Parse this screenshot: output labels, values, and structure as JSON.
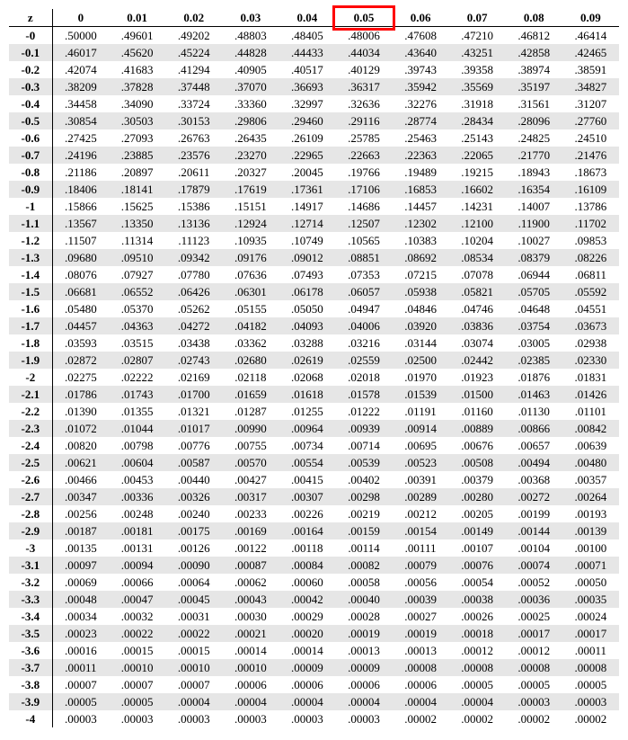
{
  "table": {
    "type": "table",
    "header_label": "z",
    "columns": [
      "0",
      "0.01",
      "0.02",
      "0.03",
      "0.04",
      "0.05",
      "0.06",
      "0.07",
      "0.08",
      "0.09"
    ],
    "highlighted_column_index": 5,
    "highlight_color": "#ff0000",
    "row_shade_color": "#e6e6e6",
    "border_color": "#000000",
    "font_family": "Times New Roman",
    "header_fontsize": 13,
    "cell_fontsize": 13,
    "rows": [
      {
        "z": "-0",
        "v": [
          ".50000",
          ".49601",
          ".49202",
          ".48803",
          ".48405",
          ".48006",
          ".47608",
          ".47210",
          ".46812",
          ".46414"
        ]
      },
      {
        "z": "-0.1",
        "v": [
          ".46017",
          ".45620",
          ".45224",
          ".44828",
          ".44433",
          ".44034",
          ".43640",
          ".43251",
          ".42858",
          ".42465"
        ]
      },
      {
        "z": "-0.2",
        "v": [
          ".42074",
          ".41683",
          ".41294",
          ".40905",
          ".40517",
          ".40129",
          ".39743",
          ".39358",
          ".38974",
          ".38591"
        ]
      },
      {
        "z": "-0.3",
        "v": [
          ".38209",
          ".37828",
          ".37448",
          ".37070",
          ".36693",
          ".36317",
          ".35942",
          ".35569",
          ".35197",
          ".34827"
        ]
      },
      {
        "z": "-0.4",
        "v": [
          ".34458",
          ".34090",
          ".33724",
          ".33360",
          ".32997",
          ".32636",
          ".32276",
          ".31918",
          ".31561",
          ".31207"
        ]
      },
      {
        "z": "-0.5",
        "v": [
          ".30854",
          ".30503",
          ".30153",
          ".29806",
          ".29460",
          ".29116",
          ".28774",
          ".28434",
          ".28096",
          ".27760"
        ]
      },
      {
        "z": "-0.6",
        "v": [
          ".27425",
          ".27093",
          ".26763",
          ".26435",
          ".26109",
          ".25785",
          ".25463",
          ".25143",
          ".24825",
          ".24510"
        ]
      },
      {
        "z": "-0.7",
        "v": [
          ".24196",
          ".23885",
          ".23576",
          ".23270",
          ".22965",
          ".22663",
          ".22363",
          ".22065",
          ".21770",
          ".21476"
        ]
      },
      {
        "z": "-0.8",
        "v": [
          ".21186",
          ".20897",
          ".20611",
          ".20327",
          ".20045",
          ".19766",
          ".19489",
          ".19215",
          ".18943",
          ".18673"
        ]
      },
      {
        "z": "-0.9",
        "v": [
          ".18406",
          ".18141",
          ".17879",
          ".17619",
          ".17361",
          ".17106",
          ".16853",
          ".16602",
          ".16354",
          ".16109"
        ]
      },
      {
        "z": "-1",
        "v": [
          ".15866",
          ".15625",
          ".15386",
          ".15151",
          ".14917",
          ".14686",
          ".14457",
          ".14231",
          ".14007",
          ".13786"
        ]
      },
      {
        "z": "-1.1",
        "v": [
          ".13567",
          ".13350",
          ".13136",
          ".12924",
          ".12714",
          ".12507",
          ".12302",
          ".12100",
          ".11900",
          ".11702"
        ]
      },
      {
        "z": "-1.2",
        "v": [
          ".11507",
          ".11314",
          ".11123",
          ".10935",
          ".10749",
          ".10565",
          ".10383",
          ".10204",
          ".10027",
          ".09853"
        ]
      },
      {
        "z": "-1.3",
        "v": [
          ".09680",
          ".09510",
          ".09342",
          ".09176",
          ".09012",
          ".08851",
          ".08692",
          ".08534",
          ".08379",
          ".08226"
        ]
      },
      {
        "z": "-1.4",
        "v": [
          ".08076",
          ".07927",
          ".07780",
          ".07636",
          ".07493",
          ".07353",
          ".07215",
          ".07078",
          ".06944",
          ".06811"
        ]
      },
      {
        "z": "-1.5",
        "v": [
          ".06681",
          ".06552",
          ".06426",
          ".06301",
          ".06178",
          ".06057",
          ".05938",
          ".05821",
          ".05705",
          ".05592"
        ]
      },
      {
        "z": "-1.6",
        "v": [
          ".05480",
          ".05370",
          ".05262",
          ".05155",
          ".05050",
          ".04947",
          ".04846",
          ".04746",
          ".04648",
          ".04551"
        ]
      },
      {
        "z": "-1.7",
        "v": [
          ".04457",
          ".04363",
          ".04272",
          ".04182",
          ".04093",
          ".04006",
          ".03920",
          ".03836",
          ".03754",
          ".03673"
        ]
      },
      {
        "z": "-1.8",
        "v": [
          ".03593",
          ".03515",
          ".03438",
          ".03362",
          ".03288",
          ".03216",
          ".03144",
          ".03074",
          ".03005",
          ".02938"
        ]
      },
      {
        "z": "-1.9",
        "v": [
          ".02872",
          ".02807",
          ".02743",
          ".02680",
          ".02619",
          ".02559",
          ".02500",
          ".02442",
          ".02385",
          ".02330"
        ]
      },
      {
        "z": "-2",
        "v": [
          ".02275",
          ".02222",
          ".02169",
          ".02118",
          ".02068",
          ".02018",
          ".01970",
          ".01923",
          ".01876",
          ".01831"
        ]
      },
      {
        "z": "-2.1",
        "v": [
          ".01786",
          ".01743",
          ".01700",
          ".01659",
          ".01618",
          ".01578",
          ".01539",
          ".01500",
          ".01463",
          ".01426"
        ]
      },
      {
        "z": "-2.2",
        "v": [
          ".01390",
          ".01355",
          ".01321",
          ".01287",
          ".01255",
          ".01222",
          ".01191",
          ".01160",
          ".01130",
          ".01101"
        ]
      },
      {
        "z": "-2.3",
        "v": [
          ".01072",
          ".01044",
          ".01017",
          ".00990",
          ".00964",
          ".00939",
          ".00914",
          ".00889",
          ".00866",
          ".00842"
        ]
      },
      {
        "z": "-2.4",
        "v": [
          ".00820",
          ".00798",
          ".00776",
          ".00755",
          ".00734",
          ".00714",
          ".00695",
          ".00676",
          ".00657",
          ".00639"
        ]
      },
      {
        "z": "-2.5",
        "v": [
          ".00621",
          ".00604",
          ".00587",
          ".00570",
          ".00554",
          ".00539",
          ".00523",
          ".00508",
          ".00494",
          ".00480"
        ]
      },
      {
        "z": "-2.6",
        "v": [
          ".00466",
          ".00453",
          ".00440",
          ".00427",
          ".00415",
          ".00402",
          ".00391",
          ".00379",
          ".00368",
          ".00357"
        ]
      },
      {
        "z": "-2.7",
        "v": [
          ".00347",
          ".00336",
          ".00326",
          ".00317",
          ".00307",
          ".00298",
          ".00289",
          ".00280",
          ".00272",
          ".00264"
        ]
      },
      {
        "z": "-2.8",
        "v": [
          ".00256",
          ".00248",
          ".00240",
          ".00233",
          ".00226",
          ".00219",
          ".00212",
          ".00205",
          ".00199",
          ".00193"
        ]
      },
      {
        "z": "-2.9",
        "v": [
          ".00187",
          ".00181",
          ".00175",
          ".00169",
          ".00164",
          ".00159",
          ".00154",
          ".00149",
          ".00144",
          ".00139"
        ]
      },
      {
        "z": "-3",
        "v": [
          ".00135",
          ".00131",
          ".00126",
          ".00122",
          ".00118",
          ".00114",
          ".00111",
          ".00107",
          ".00104",
          ".00100"
        ]
      },
      {
        "z": "-3.1",
        "v": [
          ".00097",
          ".00094",
          ".00090",
          ".00087",
          ".00084",
          ".00082",
          ".00079",
          ".00076",
          ".00074",
          ".00071"
        ]
      },
      {
        "z": "-3.2",
        "v": [
          ".00069",
          ".00066",
          ".00064",
          ".00062",
          ".00060",
          ".00058",
          ".00056",
          ".00054",
          ".00052",
          ".00050"
        ]
      },
      {
        "z": "-3.3",
        "v": [
          ".00048",
          ".00047",
          ".00045",
          ".00043",
          ".00042",
          ".00040",
          ".00039",
          ".00038",
          ".00036",
          ".00035"
        ]
      },
      {
        "z": "-3.4",
        "v": [
          ".00034",
          ".00032",
          ".00031",
          ".00030",
          ".00029",
          ".00028",
          ".00027",
          ".00026",
          ".00025",
          ".00024"
        ]
      },
      {
        "z": "-3.5",
        "v": [
          ".00023",
          ".00022",
          ".00022",
          ".00021",
          ".00020",
          ".00019",
          ".00019",
          ".00018",
          ".00017",
          ".00017"
        ]
      },
      {
        "z": "-3.6",
        "v": [
          ".00016",
          ".00015",
          ".00015",
          ".00014",
          ".00014",
          ".00013",
          ".00013",
          ".00012",
          ".00012",
          ".00011"
        ]
      },
      {
        "z": "-3.7",
        "v": [
          ".00011",
          ".00010",
          ".00010",
          ".00010",
          ".00009",
          ".00009",
          ".00008",
          ".00008",
          ".00008",
          ".00008"
        ]
      },
      {
        "z": "-3.8",
        "v": [
          ".00007",
          ".00007",
          ".00007",
          ".00006",
          ".00006",
          ".00006",
          ".00006",
          ".00005",
          ".00005",
          ".00005"
        ]
      },
      {
        "z": "-3.9",
        "v": [
          ".00005",
          ".00005",
          ".00004",
          ".00004",
          ".00004",
          ".00004",
          ".00004",
          ".00004",
          ".00003",
          ".00003"
        ]
      },
      {
        "z": "-4",
        "v": [
          ".00003",
          ".00003",
          ".00003",
          ".00003",
          ".00003",
          ".00003",
          ".00002",
          ".00002",
          ".00002",
          ".00002"
        ]
      }
    ]
  }
}
